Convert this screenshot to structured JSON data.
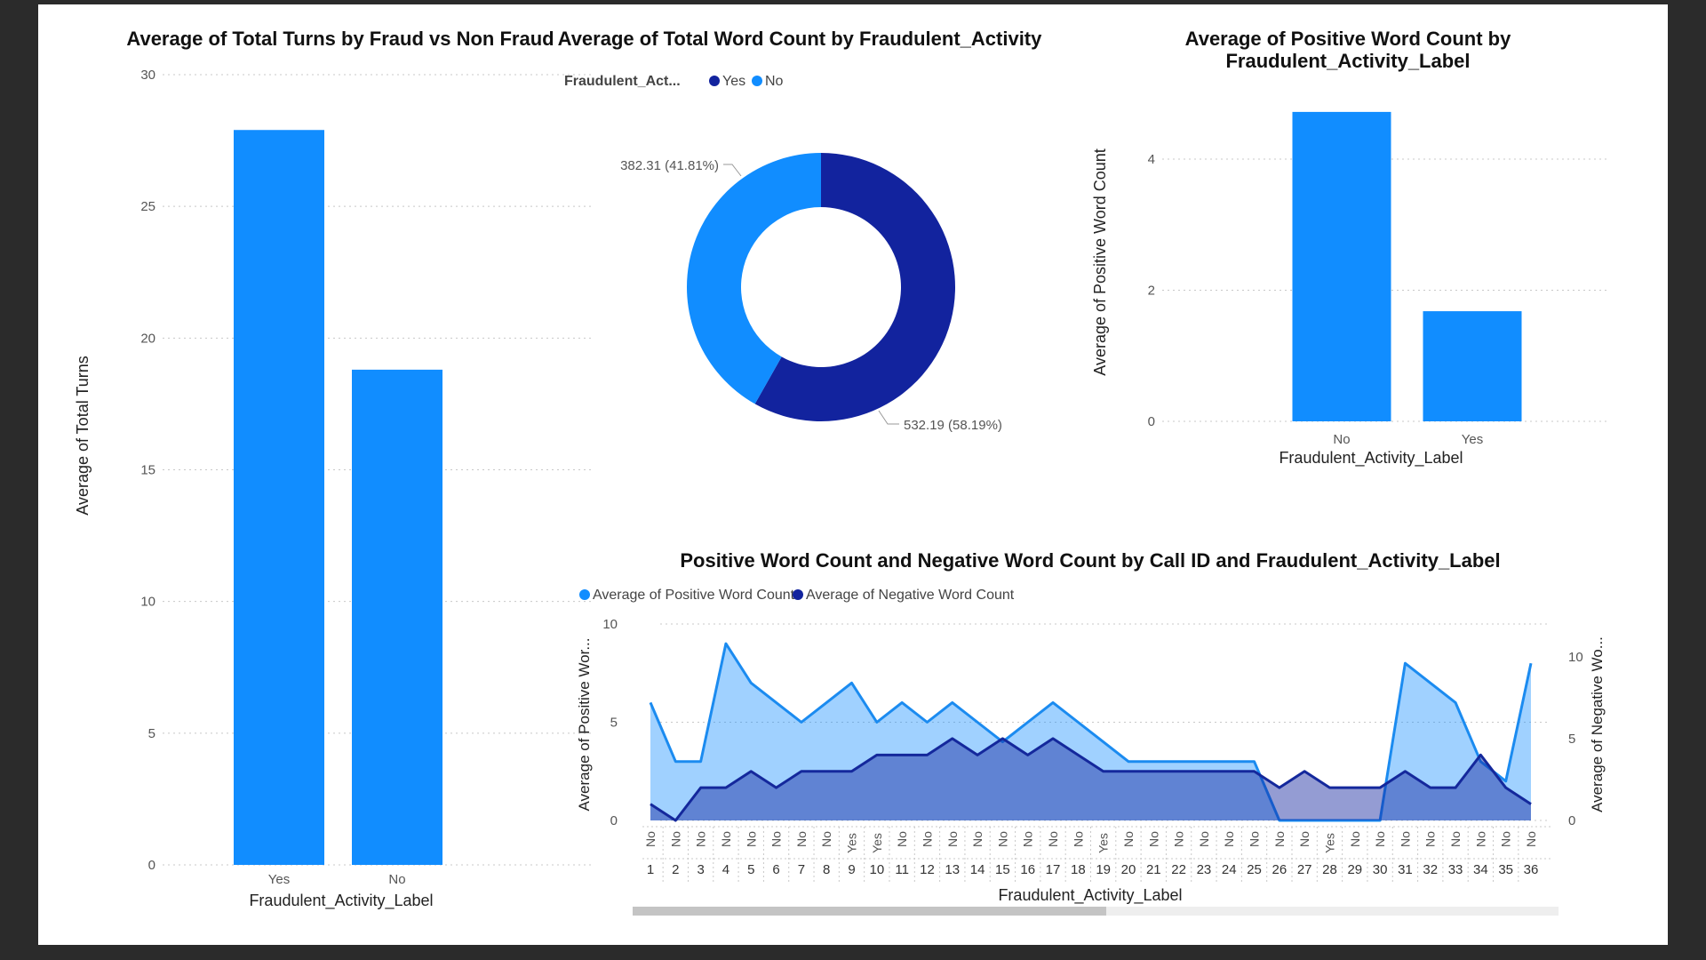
{
  "colors": {
    "light_blue": "#118DFF",
    "dark_blue": "#12239E",
    "pos_line": "#1B8BF0",
    "neg_line": "#14289C",
    "background": "#2b2b2b"
  },
  "chart_data": [
    {
      "type": "bar",
      "title": "Average of Total Turns by Fraud vs Non Fraud",
      "xlabel": "Fraudulent_Activity_Label",
      "ylabel": "Average of Total Turns",
      "categories": [
        "Yes",
        "No"
      ],
      "values": [
        27.9,
        18.8
      ],
      "ylim": [
        0,
        30
      ],
      "yticks": [
        0,
        5,
        10,
        15,
        20,
        25,
        30
      ],
      "grid": true
    },
    {
      "type": "pie",
      "title": "Average of Total Word Count by Fraudulent_Activity",
      "legend_title": "Fraudulent_Act...",
      "legend_position": "top-left",
      "slices": [
        {
          "label": "Yes",
          "value": 532.19,
          "data_label": "532.19 (58.19%)",
          "color": "#12239E"
        },
        {
          "label": "No",
          "value": 382.31,
          "data_label": "382.31 (41.81%)",
          "color": "#118DFF"
        }
      ],
      "donut": true
    },
    {
      "type": "bar",
      "title": "Average of Positive Word Count by Fraudulent_Activity_Label",
      "title_lines": [
        "Average of Positive Word Count by",
        "Fraudulent_Activity_Label"
      ],
      "xlabel": "Fraudulent_Activity_Label",
      "ylabel": "Average of Positive Word Count",
      "categories": [
        "No",
        "Yes"
      ],
      "values": [
        4.72,
        1.68
      ],
      "ylim": [
        0,
        5
      ],
      "yticks": [
        0,
        2,
        4
      ],
      "grid": true
    },
    {
      "type": "area",
      "title": "Positive Word Count and Negative Word Count by Call ID and Fraudulent_Activity_Label",
      "xlabel": "Fraudulent_Activity_Label",
      "ylabel_left": "Average of Positive Wor...",
      "ylabel_right": "Average of Negative Wo...",
      "legend_position": "top-left",
      "x": [
        "1",
        "2",
        "3",
        "4",
        "5",
        "6",
        "7",
        "8",
        "9",
        "10",
        "11",
        "12",
        "13",
        "14",
        "15",
        "16",
        "17",
        "18",
        "19",
        "20",
        "21",
        "22",
        "23",
        "24",
        "25",
        "26",
        "27",
        "28",
        "29",
        "30",
        "31",
        "32",
        "33",
        "34",
        "35",
        "36"
      ],
      "x_labels": [
        "No",
        "No",
        "No",
        "No",
        "No",
        "No",
        "No",
        "No",
        "Yes",
        "Yes",
        "No",
        "No",
        "No",
        "No",
        "No",
        "No",
        "No",
        "No",
        "Yes",
        "No",
        "No",
        "No",
        "No",
        "No",
        "No",
        "No",
        "No",
        "Yes",
        "No",
        "No",
        "No",
        "No",
        "No",
        "No",
        "No",
        "No"
      ],
      "series": [
        {
          "name": "Average of Positive Word Count",
          "axis": "left",
          "values": [
            6,
            3,
            3,
            9,
            7,
            6,
            5,
            6,
            7,
            5,
            6,
            5,
            6,
            5,
            4,
            5,
            6,
            5,
            4,
            3,
            3,
            3,
            3,
            3,
            3,
            0,
            0,
            0,
            0,
            0,
            8,
            7,
            6,
            3,
            2,
            8
          ]
        },
        {
          "name": "Average of Negative Word Count",
          "axis": "right",
          "values": [
            1,
            0,
            2,
            2,
            3,
            2,
            3,
            3,
            3,
            4,
            4,
            4,
            5,
            4,
            5,
            4,
            5,
            4,
            3,
            3,
            3,
            3,
            3,
            3,
            3,
            2,
            3,
            2,
            2,
            2,
            3,
            2,
            2,
            4,
            2,
            1
          ]
        }
      ],
      "ylim_left": [
        0,
        10
      ],
      "yticks_left": [
        0,
        5,
        10
      ],
      "ylim_right": [
        0,
        12
      ],
      "yticks_right": [
        0,
        5,
        10
      ],
      "grid": true
    }
  ]
}
